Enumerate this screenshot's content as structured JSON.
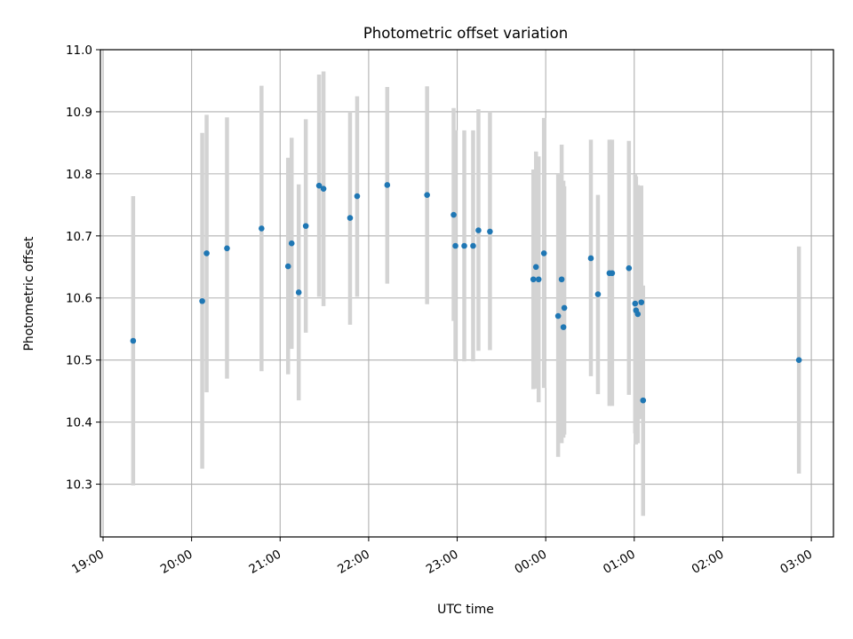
{
  "chart_data": {
    "type": "scatter",
    "title": "Photometric offset variation",
    "xlabel": "UTC time",
    "ylabel": "Photometric offset",
    "x_unit": "hours since 19:00 UTC",
    "xlim": [
      -0.03,
      8.25
    ],
    "ylim": [
      10.215,
      11.0
    ],
    "xticks": [
      {
        "v": 0,
        "label": "19:00"
      },
      {
        "v": 1,
        "label": "20:00"
      },
      {
        "v": 2,
        "label": "21:00"
      },
      {
        "v": 3,
        "label": "22:00"
      },
      {
        "v": 4,
        "label": "23:00"
      },
      {
        "v": 5,
        "label": "00:00"
      },
      {
        "v": 6,
        "label": "01:00"
      },
      {
        "v": 7,
        "label": "02:00"
      },
      {
        "v": 8,
        "label": "03:00"
      }
    ],
    "yticks": [
      {
        "v": 10.3,
        "label": "10.3"
      },
      {
        "v": 10.4,
        "label": "10.4"
      },
      {
        "v": 10.5,
        "label": "10.5"
      },
      {
        "v": 10.6,
        "label": "10.6"
      },
      {
        "v": 10.7,
        "label": "10.7"
      },
      {
        "v": 10.8,
        "label": "10.8"
      },
      {
        "v": 10.9,
        "label": "10.9"
      },
      {
        "v": 11.0,
        "label": "11.0"
      }
    ],
    "grid": true,
    "colors": {
      "point": "#1f77b4",
      "errorbar": "#d3d3d3",
      "grid": "#b0b0b0"
    },
    "points": [
      {
        "x": 0.34,
        "y": 10.531,
        "lo": 10.298,
        "hi": 10.764
      },
      {
        "x": 1.12,
        "y": 10.595,
        "lo": 10.325,
        "hi": 10.866
      },
      {
        "x": 1.17,
        "y": 10.672,
        "lo": 10.448,
        "hi": 10.895
      },
      {
        "x": 1.4,
        "y": 10.68,
        "lo": 10.47,
        "hi": 10.891
      },
      {
        "x": 1.79,
        "y": 10.712,
        "lo": 10.482,
        "hi": 10.942
      },
      {
        "x": 2.09,
        "y": 10.651,
        "lo": 10.477,
        "hi": 10.826
      },
      {
        "x": 2.13,
        "y": 10.688,
        "lo": 10.518,
        "hi": 10.858
      },
      {
        "x": 2.21,
        "y": 10.609,
        "lo": 10.435,
        "hi": 10.783
      },
      {
        "x": 2.29,
        "y": 10.716,
        "lo": 10.544,
        "hi": 10.888
      },
      {
        "x": 2.44,
        "y": 10.781,
        "lo": 10.602,
        "hi": 10.96
      },
      {
        "x": 2.49,
        "y": 10.776,
        "lo": 10.587,
        "hi": 10.965
      },
      {
        "x": 2.79,
        "y": 10.729,
        "lo": 10.557,
        "hi": 10.9
      },
      {
        "x": 2.87,
        "y": 10.764,
        "lo": 10.602,
        "hi": 10.925
      },
      {
        "x": 3.21,
        "y": 10.782,
        "lo": 10.623,
        "hi": 10.94
      },
      {
        "x": 3.66,
        "y": 10.766,
        "lo": 10.59,
        "hi": 10.941
      },
      {
        "x": 3.96,
        "y": 10.734,
        "lo": 10.563,
        "hi": 10.906
      },
      {
        "x": 3.98,
        "y": 10.684,
        "lo": 10.498,
        "hi": 10.87
      },
      {
        "x": 4.08,
        "y": 10.684,
        "lo": 10.498,
        "hi": 10.87
      },
      {
        "x": 4.18,
        "y": 10.684,
        "lo": 10.498,
        "hi": 10.87
      },
      {
        "x": 4.24,
        "y": 10.709,
        "lo": 10.515,
        "hi": 10.904
      },
      {
        "x": 4.37,
        "y": 10.707,
        "lo": 10.516,
        "hi": 10.9
      },
      {
        "x": 4.86,
        "y": 10.63,
        "lo": 10.453,
        "hi": 10.807
      },
      {
        "x": 4.89,
        "y": 10.65,
        "lo": 10.454,
        "hi": 10.836
      },
      {
        "x": 4.92,
        "y": 10.63,
        "lo": 10.432,
        "hi": 10.828
      },
      {
        "x": 4.98,
        "y": 10.672,
        "lo": 10.455,
        "hi": 10.89
      },
      {
        "x": 5.14,
        "y": 10.571,
        "lo": 10.344,
        "hi": 10.8
      },
      {
        "x": 5.18,
        "y": 10.63,
        "lo": 10.366,
        "hi": 10.847
      },
      {
        "x": 5.2,
        "y": 10.553,
        "lo": 10.375,
        "hi": 10.789
      },
      {
        "x": 5.21,
        "y": 10.584,
        "lo": 10.38,
        "hi": 10.78
      },
      {
        "x": 5.51,
        "y": 10.664,
        "lo": 10.474,
        "hi": 10.855
      },
      {
        "x": 5.59,
        "y": 10.606,
        "lo": 10.445,
        "hi": 10.766
      },
      {
        "x": 5.72,
        "y": 10.64,
        "lo": 10.426,
        "hi": 10.855
      },
      {
        "x": 5.75,
        "y": 10.64,
        "lo": 10.426,
        "hi": 10.855
      },
      {
        "x": 5.94,
        "y": 10.648,
        "lo": 10.444,
        "hi": 10.853
      },
      {
        "x": 6.01,
        "y": 10.591,
        "lo": 10.382,
        "hi": 10.8
      },
      {
        "x": 6.02,
        "y": 10.58,
        "lo": 10.364,
        "hi": 10.796
      },
      {
        "x": 6.04,
        "y": 10.574,
        "lo": 10.366,
        "hi": 10.782
      },
      {
        "x": 6.08,
        "y": 10.593,
        "lo": 10.405,
        "hi": 10.781
      },
      {
        "x": 6.1,
        "y": 10.435,
        "lo": 10.249,
        "hi": 10.62
      },
      {
        "x": 7.86,
        "y": 10.5,
        "lo": 10.317,
        "hi": 10.683
      }
    ]
  }
}
